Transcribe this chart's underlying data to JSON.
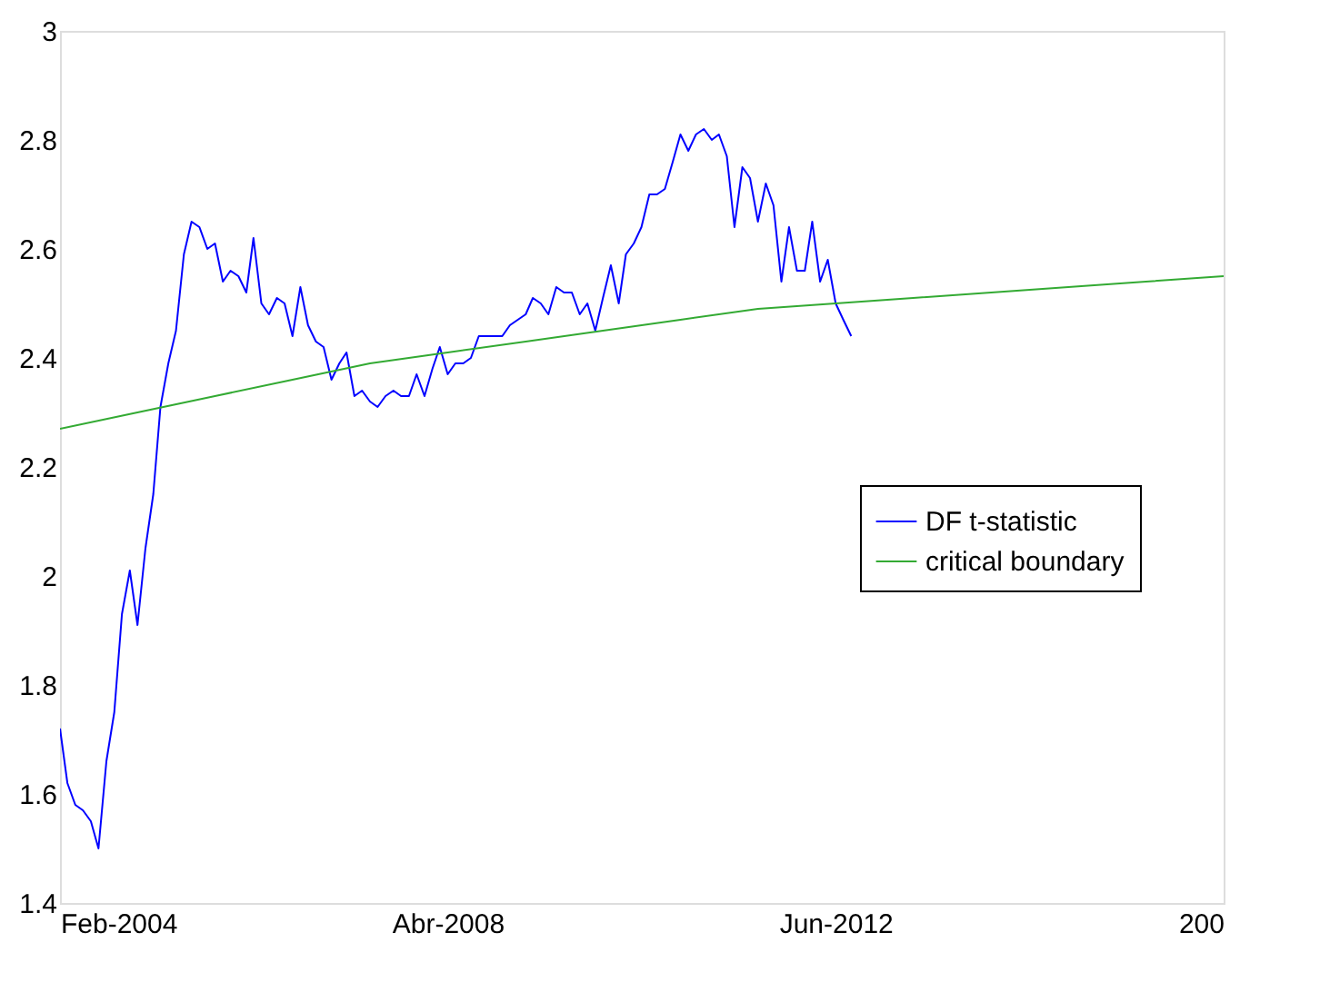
{
  "chart_data": {
    "type": "line",
    "xlim": [
      "2004-02",
      "2016-08"
    ],
    "xticks": [
      {
        "value": "2004-02",
        "label": "Feb-2004"
      },
      {
        "value": "2008-04",
        "label": "Abr-2008"
      },
      {
        "value": "2012-06",
        "label": "Jun-2012"
      },
      {
        "value": "2016-08",
        "label": "200"
      }
    ],
    "ylim": [
      1.4,
      3
    ],
    "yticks": [
      1.4,
      1.6,
      1.8,
      {
        "value": 2,
        "label": "2"
      },
      2.2,
      2.4,
      2.6,
      2.8,
      {
        "value": 3,
        "label": "3"
      }
    ],
    "grid": false,
    "legend": "right",
    "marker": "none",
    "line_style": "solid",
    "series": [
      {
        "name": "DF t-statistic",
        "color": "#0000ff",
        "x": [
          "2004-02",
          "2004-03",
          "2004-04",
          "2004-05",
          "2004-06",
          "2004-07",
          "2004-08",
          "2004-09",
          "2004-10",
          "2004-11",
          "2004-12",
          "2005-01",
          "2005-02",
          "2005-03",
          "2005-04",
          "2005-05",
          "2005-06",
          "2005-07",
          "2005-08",
          "2005-09",
          "2005-10",
          "2005-11",
          "2005-12",
          "2006-01",
          "2006-02",
          "2006-03",
          "2006-04",
          "2006-05",
          "2006-06",
          "2006-07",
          "2006-08",
          "2006-09",
          "2006-10",
          "2006-11",
          "2006-12",
          "2007-01",
          "2007-02",
          "2007-03",
          "2007-04",
          "2007-05",
          "2007-06",
          "2007-07",
          "2007-08",
          "2007-09",
          "2007-10",
          "2007-11",
          "2007-12",
          "2008-01",
          "2008-02",
          "2008-03",
          "2008-04",
          "2008-05",
          "2008-06",
          "2008-07",
          "2008-08",
          "2008-09",
          "2008-10",
          "2008-11",
          "2008-12",
          "2009-01",
          "2009-02",
          "2009-03",
          "2009-04",
          "2009-05",
          "2009-06",
          "2009-07",
          "2009-08",
          "2009-09",
          "2009-10",
          "2009-11",
          "2009-12",
          "2010-01",
          "2010-02",
          "2010-03",
          "2010-04",
          "2010-05",
          "2010-06",
          "2010-07",
          "2010-08",
          "2010-09",
          "2010-10",
          "2010-11",
          "2010-12",
          "2011-01",
          "2011-02",
          "2011-03",
          "2011-04",
          "2011-05",
          "2011-06",
          "2011-07",
          "2011-08",
          "2011-09",
          "2011-10",
          "2011-11",
          "2011-12",
          "2012-01",
          "2012-02",
          "2012-03",
          "2012-04",
          "2012-05",
          "2012-06",
          "2012-07",
          "2012-08"
        ],
        "values": [
          1.72,
          1.62,
          1.58,
          1.57,
          1.55,
          1.5,
          1.66,
          1.75,
          1.93,
          2.01,
          1.91,
          2.05,
          2.15,
          2.31,
          2.39,
          2.45,
          2.59,
          2.65,
          2.64,
          2.6,
          2.61,
          2.54,
          2.56,
          2.55,
          2.52,
          2.62,
          2.5,
          2.48,
          2.51,
          2.5,
          2.44,
          2.53,
          2.46,
          2.43,
          2.42,
          2.36,
          2.39,
          2.41,
          2.33,
          2.34,
          2.32,
          2.31,
          2.33,
          2.34,
          2.33,
          2.33,
          2.37,
          2.33,
          2.38,
          2.42,
          2.37,
          2.39,
          2.39,
          2.4,
          2.44,
          2.44,
          2.44,
          2.44,
          2.46,
          2.47,
          2.48,
          2.51,
          2.5,
          2.48,
          2.53,
          2.52,
          2.52,
          2.48,
          2.5,
          2.45,
          2.51,
          2.57,
          2.5,
          2.59,
          2.61,
          2.64,
          2.7,
          2.7,
          2.71,
          2.76,
          2.81,
          2.78,
          2.81,
          2.82,
          2.8,
          2.81,
          2.77,
          2.64,
          2.75,
          2.73,
          2.65,
          2.72,
          2.68,
          2.54,
          2.64,
          2.56,
          2.56,
          2.65,
          2.54,
          2.58,
          2.5,
          2.47,
          2.44
        ]
      },
      {
        "name": "critical boundary",
        "color": "#33aa33",
        "x": [
          "2004-02",
          "2004-12",
          "2005-10",
          "2006-08",
          "2007-06",
          "2008-04",
          "2009-02",
          "2009-12",
          "2010-10",
          "2011-08",
          "2012-06",
          "2013-04",
          "2014-02",
          "2014-12",
          "2015-10",
          "2016-08"
        ],
        "values": [
          2.27,
          2.3,
          2.33,
          2.36,
          2.39,
          2.41,
          2.43,
          2.45,
          2.47,
          2.49,
          2.5,
          2.51,
          2.52,
          2.53,
          2.54,
          2.55
        ]
      }
    ]
  }
}
